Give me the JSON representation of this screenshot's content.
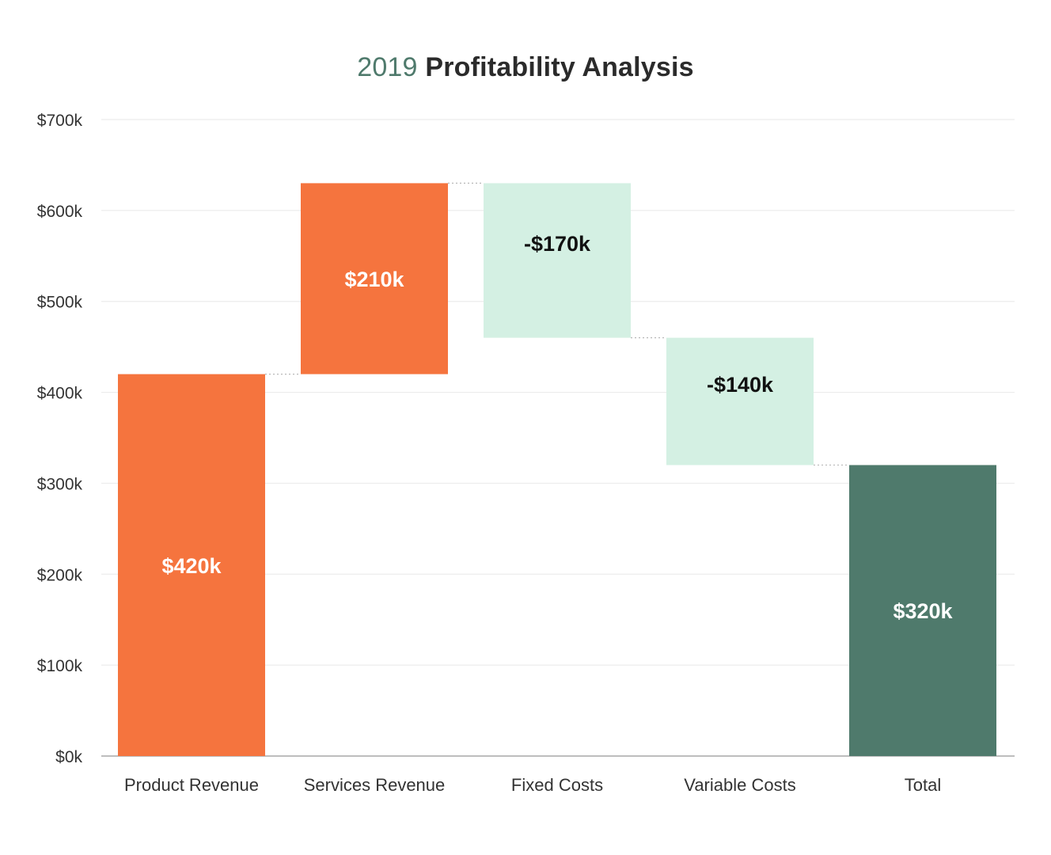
{
  "chart_data": {
    "type": "bar",
    "subtype": "waterfall",
    "title": {
      "year": "2019",
      "text": "Profitability Analysis"
    },
    "categories": [
      "Product Revenue",
      "Services Revenue",
      "Fixed Costs",
      "Variable Costs",
      "Total"
    ],
    "values": [
      420,
      210,
      -170,
      -140,
      320
    ],
    "bar_kind": [
      "increase",
      "increase",
      "decrease",
      "decrease",
      "total"
    ],
    "data_labels": [
      "$420k",
      "$210k",
      "-$170k",
      "-$140k",
      "$320k"
    ],
    "unit": "k USD",
    "ylim": [
      0,
      700
    ],
    "y_ticks": [
      0,
      100,
      200,
      300,
      400,
      500,
      600,
      700
    ],
    "y_tick_labels": [
      "$0k",
      "$100k",
      "$200k",
      "$300k",
      "$400k",
      "$500k",
      "$600k",
      "$700k"
    ],
    "xlabel": "",
    "ylabel": "",
    "grid": true,
    "connectors": true,
    "legend": "none",
    "colors": {
      "increase": "#f5743e",
      "decrease": "#d4f0e3",
      "total": "#4f7a6c",
      "label_light": "#ffffff",
      "label_dark": "#111111",
      "grid": "#ececec",
      "axis": "#bdbdbd",
      "tick_text": "#333333",
      "connector": "#b8b8b8"
    }
  }
}
